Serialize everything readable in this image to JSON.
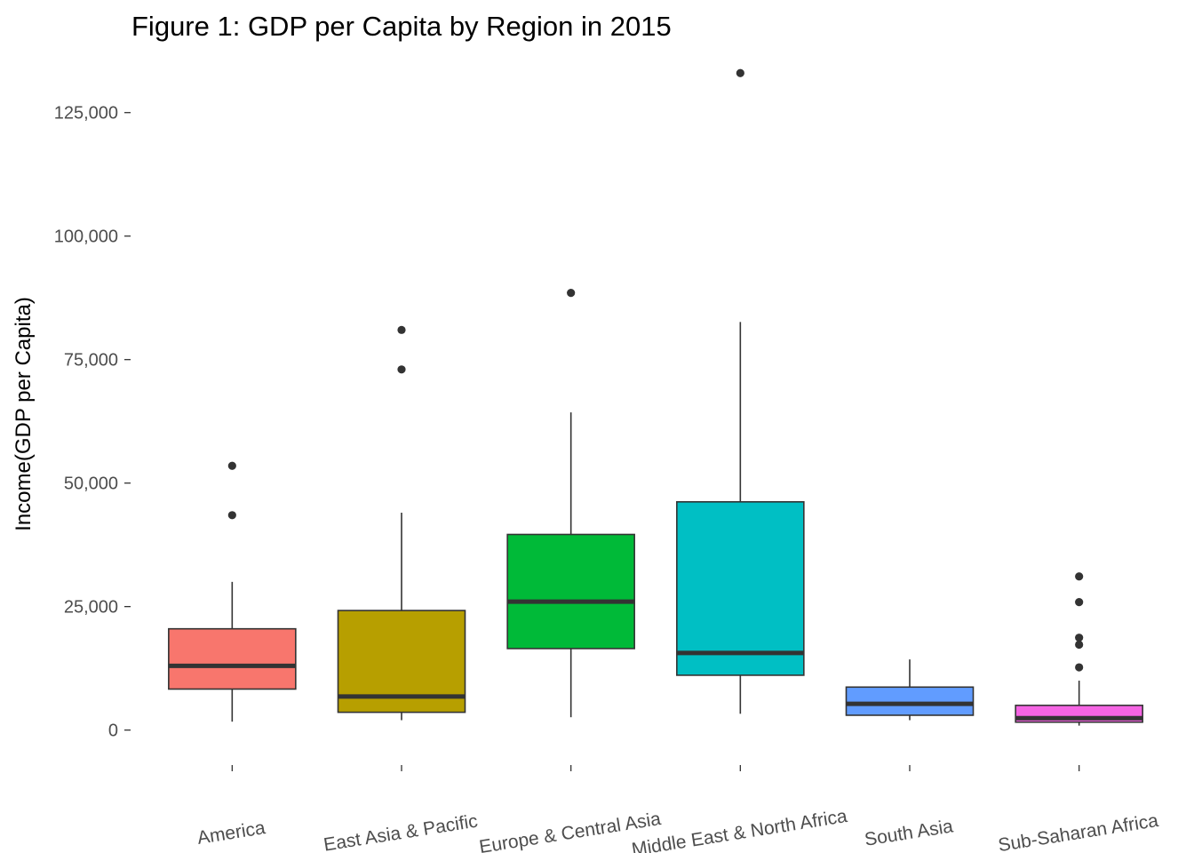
{
  "chart_data": {
    "type": "box",
    "title": "Figure 1: GDP per Capita by Region in 2015",
    "xlabel": "",
    "ylabel": "Income(GDP per Capita)",
    "ylim": [
      -6000,
      137000
    ],
    "yticks": [
      0,
      25000,
      50000,
      75000,
      100000,
      125000
    ],
    "ytick_labels": [
      "0",
      "25,000",
      "50,000",
      "75,000",
      "100,000",
      "125,000"
    ],
    "grid": false,
    "legend": "none",
    "categories": [
      "America",
      "East Asia & Pacific",
      "Europe & Central Asia",
      "Middle East & North Africa",
      "South Asia",
      "Sub-Saharan Africa"
    ],
    "colors": [
      "#F8766D",
      "#B79F00",
      "#00BA38",
      "#00BFC4",
      "#619CFF",
      "#F564E3"
    ],
    "boxes": [
      {
        "category": "America",
        "whisker_low": 1700,
        "q1": 8300,
        "median": 13000,
        "q3": 20500,
        "whisker_high": 30000,
        "outliers": [
          43500,
          53500
        ]
      },
      {
        "category": "East Asia & Pacific",
        "whisker_low": 2000,
        "q1": 3600,
        "median": 6800,
        "q3": 24200,
        "whisker_high": 44000,
        "outliers": [
          73000,
          81000
        ]
      },
      {
        "category": "Europe & Central Asia",
        "whisker_low": 2600,
        "q1": 16500,
        "median": 26000,
        "q3": 39600,
        "whisker_high": 64300,
        "outliers": [
          88500
        ]
      },
      {
        "category": "Middle East & North Africa",
        "whisker_low": 3300,
        "q1": 11100,
        "median": 15600,
        "q3": 46200,
        "whisker_high": 82600,
        "outliers": [
          133000
        ]
      },
      {
        "category": "South Asia",
        "whisker_low": 2000,
        "q1": 3000,
        "median": 5300,
        "q3": 8700,
        "whisker_high": 14300,
        "outliers": []
      },
      {
        "category": "Sub-Saharan Africa",
        "whisker_low": 900,
        "q1": 1600,
        "median": 2400,
        "q3": 5000,
        "whisker_high": 10000,
        "outliers": [
          12700,
          17300,
          18700,
          25900,
          31100
        ]
      }
    ]
  }
}
